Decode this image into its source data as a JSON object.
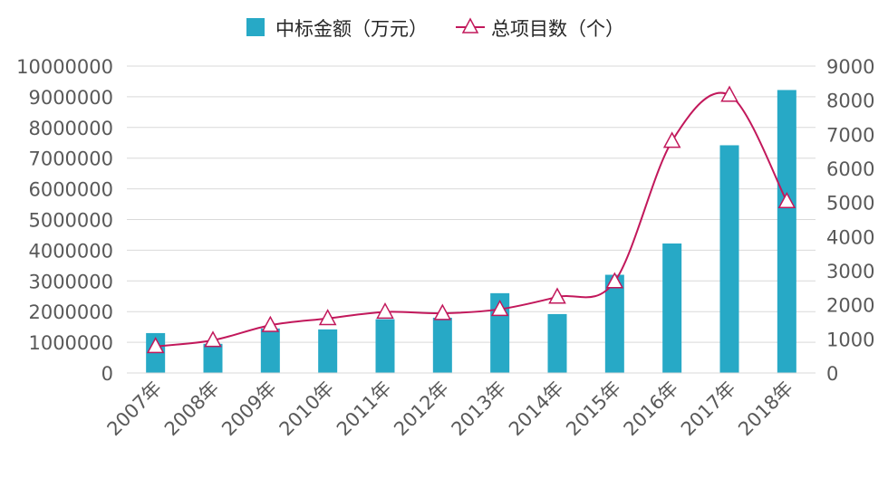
{
  "chart_data": {
    "type": "bar",
    "categories": [
      "2007年",
      "2008年",
      "2009年",
      "2010年",
      "2011年",
      "2012年",
      "2013年",
      "2014年",
      "2015年",
      "2016年",
      "2017年",
      "2018年"
    ],
    "series": [
      {
        "name": "中标金额（万元）",
        "type": "bar",
        "axis": "left",
        "color": "#27A9C6",
        "values": [
          1300000,
          950000,
          1450000,
          1420000,
          1750000,
          1800000,
          2600000,
          1920000,
          3200000,
          4220000,
          7420000,
          9220000
        ]
      },
      {
        "name": "总项目数（个）",
        "type": "line",
        "axis": "right",
        "color": "#C2185B",
        "marker": "triangle",
        "smooth": true,
        "values": [
          780,
          960,
          1400,
          1600,
          1790,
          1750,
          1870,
          2230,
          2680,
          6800,
          8150,
          5030
        ]
      }
    ],
    "y_left": {
      "ylim": [
        0,
        10000000
      ],
      "ticks": [
        "0",
        "1000000",
        "2000000",
        "3000000",
        "4000000",
        "5000000",
        "6000000",
        "7000000",
        "8000000",
        "9000000",
        "10000000"
      ]
    },
    "y_right": {
      "ylim": [
        0,
        9000
      ],
      "ticks": [
        "0",
        "1000",
        "2000",
        "3000",
        "4000",
        "5000",
        "6000",
        "7000",
        "8000",
        "9000"
      ]
    },
    "grid": true,
    "legend_position": "top-center"
  }
}
